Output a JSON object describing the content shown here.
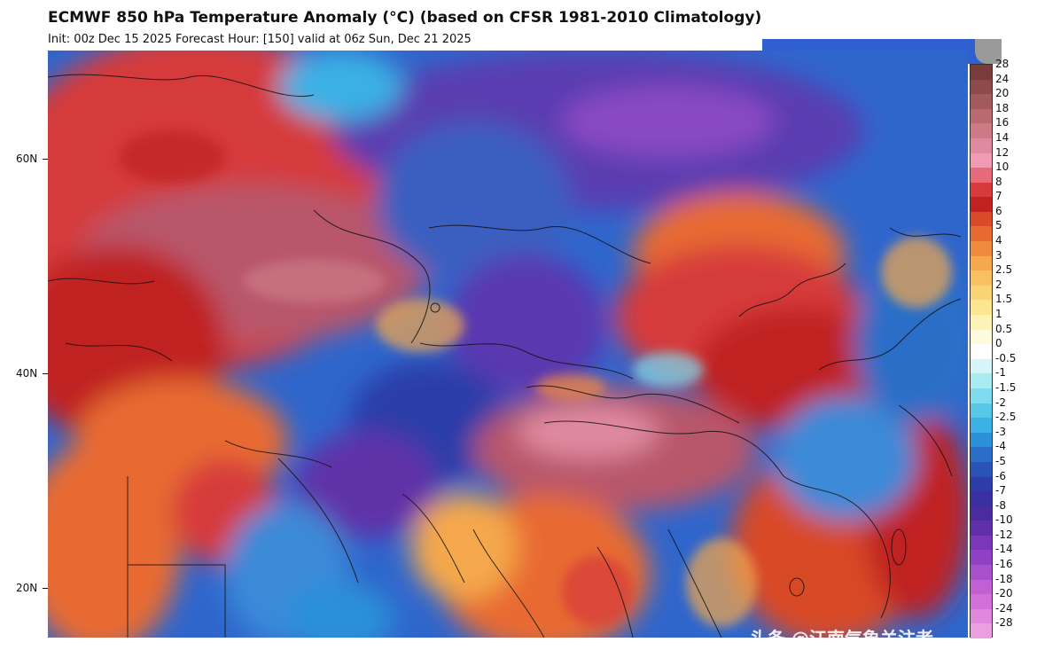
{
  "header": {
    "title": "ECMWF 850 hPa Temperature Anomaly (°C) (based on CFSR 1981-2010 Climatology)",
    "subtitle": "Init: 00z Dec 15 2025   Forecast Hour: [150]   valid at 06z Sun, Dec 21 2025"
  },
  "latitudes": [
    "60N",
    "40N",
    "20N"
  ],
  "colorbar": {
    "labels": [
      "28",
      "24",
      "20",
      "18",
      "16",
      "14",
      "12",
      "10",
      "8",
      "7",
      "6",
      "5",
      "4",
      "3",
      "2.5",
      "2",
      "1.5",
      "1",
      "0.5",
      "0",
      "-0.5",
      "-1",
      "-1.5",
      "-2",
      "-2.5",
      "-3",
      "-4",
      "-5",
      "-6",
      "-7",
      "-8",
      "-10",
      "-12",
      "-14",
      "-16",
      "-18",
      "-20",
      "-24",
      "-28"
    ],
    "colors": [
      "#7a3b3b",
      "#8e4a4a",
      "#a35a5a",
      "#b86a70",
      "#cc7a86",
      "#e08aa0",
      "#f09ab4",
      "#e86a7a",
      "#d63a3a",
      "#c02222",
      "#d84a28",
      "#e86a30",
      "#f08a3c",
      "#f5a84c",
      "#f8c060",
      "#fad474",
      "#fce690",
      "#fdf3b4",
      "#fefadc",
      "#ffffff",
      "#d6f5f8",
      "#a8ecf2",
      "#7fdcee",
      "#58c8ea",
      "#3ab0e4",
      "#2c90d8",
      "#2a6ec8",
      "#2a52b8",
      "#2c3ca8",
      "#3a2fa0",
      "#4a2c9c",
      "#6030a8",
      "#7838b8",
      "#9040c4",
      "#a850cc",
      "#c060d4",
      "#d070d8",
      "#e088dc",
      "#eaa0e0"
    ]
  },
  "watermark": "头条 @江南气象关注者"
}
